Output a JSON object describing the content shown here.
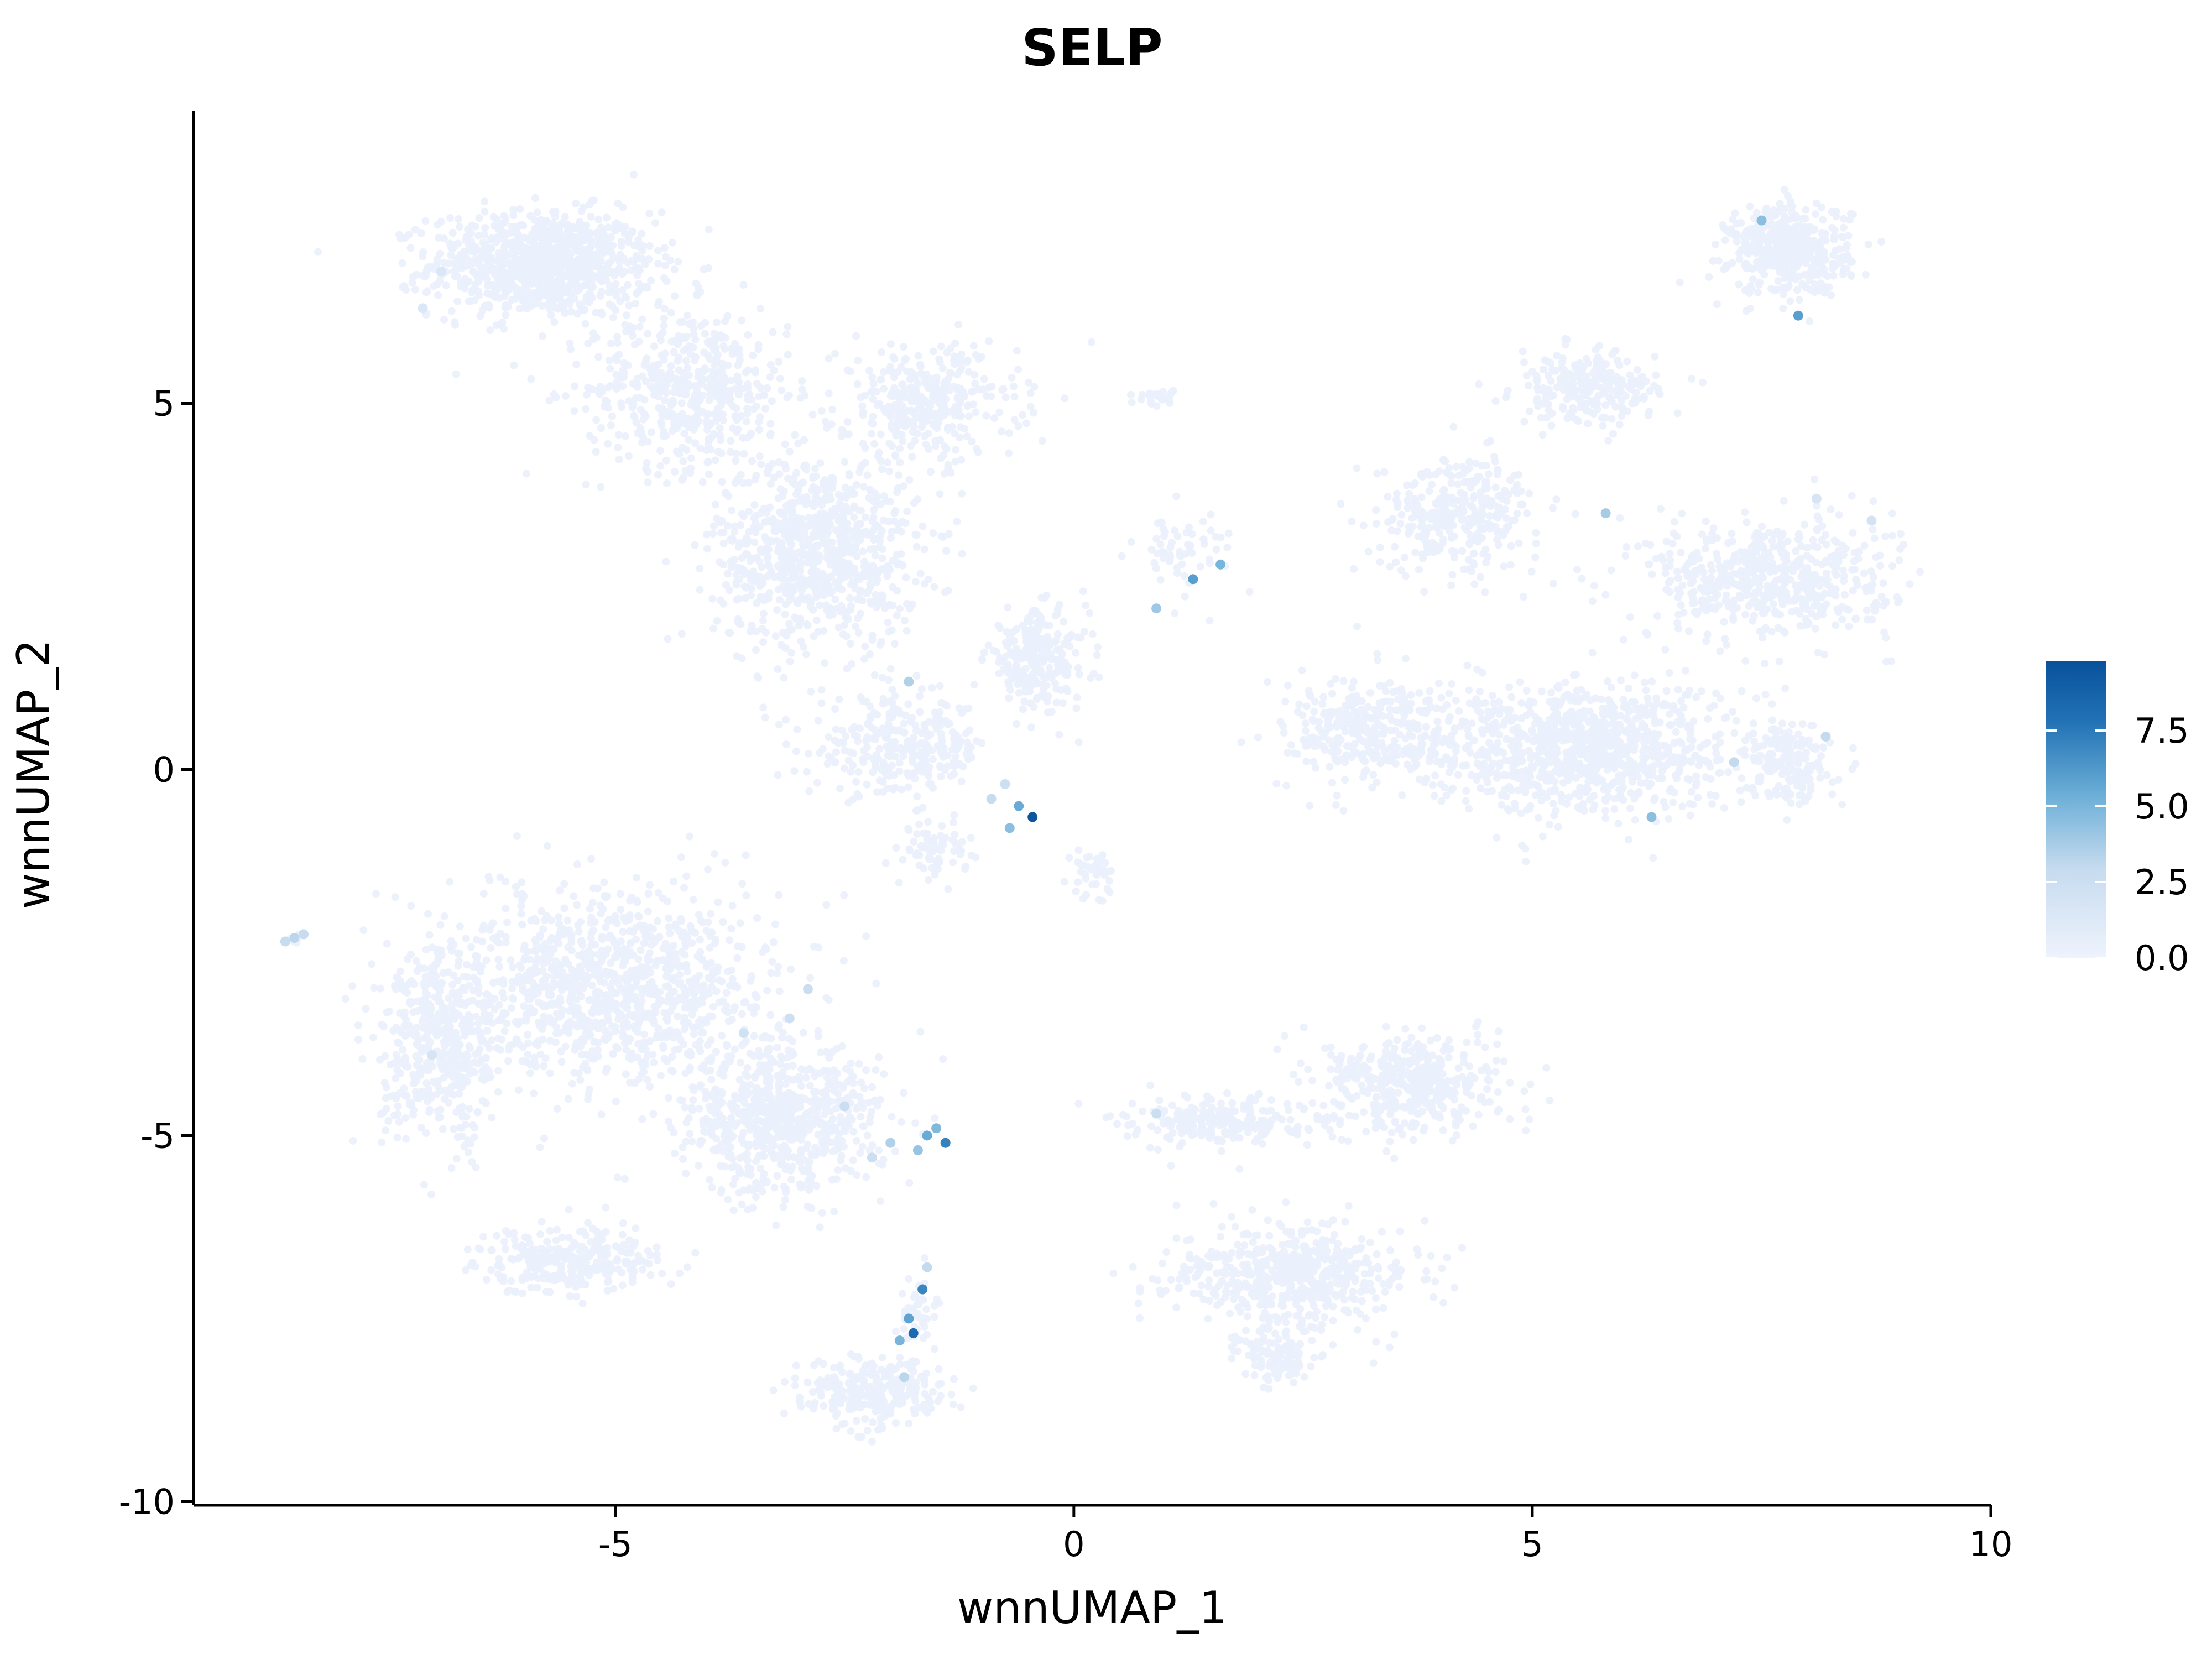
{
  "chart_data": {
    "type": "scatter",
    "title": "SELP",
    "xlabel": "wnnUMAP_1",
    "ylabel": "wnnUMAP_2",
    "xlim": [
      -9.6,
      10.0
    ],
    "ylim": [
      -10.05,
      9.0
    ],
    "x_ticks": [
      -5,
      0,
      5,
      10
    ],
    "x_tick_labels": [
      "-5",
      "0",
      "5",
      "10"
    ],
    "y_ticks": [
      5,
      0,
      -5,
      -10
    ],
    "y_tick_labels": [
      "5",
      "0",
      "-5",
      "-10"
    ],
    "grid": false,
    "legend": {
      "placement": "right",
      "type": "continuous-colorbar",
      "range": [
        0,
        9.8
      ],
      "ticks": [
        0,
        2.5,
        5,
        7.5
      ],
      "tick_labels": [
        "0.0",
        "2.5",
        "5.0",
        "7.5"
      ],
      "colors": [
        "#eef3fd",
        "#c6dbef",
        "#6baed6",
        "#2171b5",
        "#08519c"
      ]
    },
    "background_color": "#eaf0fc",
    "clusters": [
      {
        "cx": -5.8,
        "cy": 6.9,
        "sx": 1.1,
        "sy": 0.65,
        "n": 950
      },
      {
        "cx": -4.2,
        "cy": 5.2,
        "sx": 1.0,
        "sy": 1.0,
        "n": 500
      },
      {
        "cx": -2.8,
        "cy": 3.0,
        "sx": 1.0,
        "sy": 1.2,
        "n": 850
      },
      {
        "cx": -1.6,
        "cy": 5.0,
        "sx": 0.9,
        "sy": 0.7,
        "n": 350
      },
      {
        "cx": -0.4,
        "cy": 1.5,
        "sx": 0.5,
        "sy": 0.6,
        "n": 250
      },
      {
        "cx": -1.9,
        "cy": 0.3,
        "sx": 0.9,
        "sy": 0.6,
        "n": 300
      },
      {
        "cx": -1.5,
        "cy": -1.1,
        "sx": 0.3,
        "sy": 0.35,
        "n": 70
      },
      {
        "cx": 0.2,
        "cy": -1.4,
        "sx": 0.2,
        "sy": 0.3,
        "n": 40
      },
      {
        "cx": 1.2,
        "cy": 3.0,
        "sx": 0.5,
        "sy": 0.5,
        "n": 60
      },
      {
        "cx": 0.9,
        "cy": 5.1,
        "sx": 0.2,
        "sy": 0.1,
        "n": 25
      },
      {
        "cx": 7.8,
        "cy": 7.1,
        "sx": 0.6,
        "sy": 0.55,
        "n": 450
      },
      {
        "cx": 5.6,
        "cy": 5.2,
        "sx": 0.7,
        "sy": 0.45,
        "n": 250
      },
      {
        "cx": 4.2,
        "cy": 3.5,
        "sx": 0.8,
        "sy": 0.7,
        "n": 320
      },
      {
        "cx": 7.6,
        "cy": 2.6,
        "sx": 1.2,
        "sy": 0.75,
        "n": 550
      },
      {
        "cx": 5.5,
        "cy": 0.3,
        "sx": 1.5,
        "sy": 0.8,
        "n": 950
      },
      {
        "cx": 3.3,
        "cy": 0.5,
        "sx": 0.9,
        "sy": 0.7,
        "n": 320
      },
      {
        "cx": 7.8,
        "cy": 0.1,
        "sx": 0.4,
        "sy": 0.5,
        "n": 180
      },
      {
        "cx": -5.0,
        "cy": -3.0,
        "sx": 1.6,
        "sy": 1.2,
        "n": 1100
      },
      {
        "cx": -3.2,
        "cy": -4.8,
        "sx": 1.0,
        "sy": 0.9,
        "n": 700
      },
      {
        "cx": -6.9,
        "cy": -3.8,
        "sx": 0.6,
        "sy": 1.2,
        "n": 450
      },
      {
        "cx": -5.5,
        "cy": -6.7,
        "sx": 0.9,
        "sy": 0.4,
        "n": 280
      },
      {
        "cx": -2.2,
        "cy": -8.5,
        "sx": 0.7,
        "sy": 0.4,
        "n": 280
      },
      {
        "cx": -1.7,
        "cy": -7.4,
        "sx": 0.2,
        "sy": 0.5,
        "n": 50
      },
      {
        "cx": 3.7,
        "cy": -4.3,
        "sx": 0.9,
        "sy": 0.6,
        "n": 420
      },
      {
        "cx": 1.6,
        "cy": -4.8,
        "sx": 0.9,
        "sy": 0.3,
        "n": 220
      },
      {
        "cx": 2.4,
        "cy": -6.9,
        "sx": 1.2,
        "sy": 0.6,
        "n": 520
      },
      {
        "cx": 2.2,
        "cy": -8.0,
        "sx": 0.4,
        "sy": 0.4,
        "n": 120
      },
      {
        "cx": -8.5,
        "cy": -2.3,
        "sx": 0.1,
        "sy": 0.06,
        "n": 15
      }
    ],
    "expressing_cells": [
      {
        "x": -0.45,
        "y": -0.65,
        "v": 9.5
      },
      {
        "x": -1.75,
        "y": -7.7,
        "v": 8.2
      },
      {
        "x": -1.4,
        "y": -5.1,
        "v": 7.2
      },
      {
        "x": -1.65,
        "y": -7.1,
        "v": 7.0
      },
      {
        "x": -0.6,
        "y": -0.5,
        "v": 5.5
      },
      {
        "x": -0.7,
        "y": -0.8,
        "v": 4.5
      },
      {
        "x": -1.8,
        "y": -7.5,
        "v": 5.8
      },
      {
        "x": -1.9,
        "y": -7.8,
        "v": 5.0
      },
      {
        "x": -1.6,
        "y": -5.0,
        "v": 5.5
      },
      {
        "x": -1.5,
        "y": -4.9,
        "v": 4.8
      },
      {
        "x": -1.7,
        "y": -5.2,
        "v": 4.2
      },
      {
        "x": -2.0,
        "y": -5.1,
        "v": 3.5
      },
      {
        "x": 1.3,
        "y": 2.6,
        "v": 6.0
      },
      {
        "x": 1.6,
        "y": 2.8,
        "v": 5.0
      },
      {
        "x": 0.9,
        "y": 2.2,
        "v": 4.0
      },
      {
        "x": 7.9,
        "y": 6.2,
        "v": 6.0
      },
      {
        "x": 7.5,
        "y": 7.5,
        "v": 4.5
      },
      {
        "x": 6.3,
        "y": -0.65,
        "v": 4.5
      },
      {
        "x": 5.8,
        "y": 3.5,
        "v": 3.8
      },
      {
        "x": -1.8,
        "y": 1.2,
        "v": 3.5
      },
      {
        "x": -8.5,
        "y": -2.3,
        "v": 3.2
      },
      {
        "x": -8.6,
        "y": -2.35,
        "v": 2.8
      },
      {
        "x": -8.4,
        "y": -2.25,
        "v": 2.8
      },
      {
        "x": 7.2,
        "y": 0.1,
        "v": 3.0
      },
      {
        "x": 8.2,
        "y": 0.45,
        "v": 3.0
      },
      {
        "x": -1.85,
        "y": -8.3,
        "v": 3.2
      },
      {
        "x": -1.6,
        "y": -6.8,
        "v": 3.0
      },
      {
        "x": -2.9,
        "y": -3.0,
        "v": 2.6
      },
      {
        "x": -3.1,
        "y": -3.4,
        "v": 2.4
      },
      {
        "x": -2.5,
        "y": -4.6,
        "v": 2.6
      },
      {
        "x": -2.2,
        "y": -5.3,
        "v": 2.5
      },
      {
        "x": -3.6,
        "y": -3.6,
        "v": 2.2
      },
      {
        "x": 0.9,
        "y": -4.7,
        "v": 2.5
      },
      {
        "x": -0.9,
        "y": -0.4,
        "v": 2.8
      },
      {
        "x": -0.75,
        "y": -0.2,
        "v": 2.4
      },
      {
        "x": 8.7,
        "y": 3.4,
        "v": 2.0
      },
      {
        "x": 8.1,
        "y": 3.7,
        "v": 1.8
      },
      {
        "x": -7.0,
        "y": -3.9,
        "v": 1.8
      },
      {
        "x": -6.9,
        "y": 6.8,
        "v": 1.5
      },
      {
        "x": -7.1,
        "y": 6.3,
        "v": 1.5
      }
    ]
  }
}
